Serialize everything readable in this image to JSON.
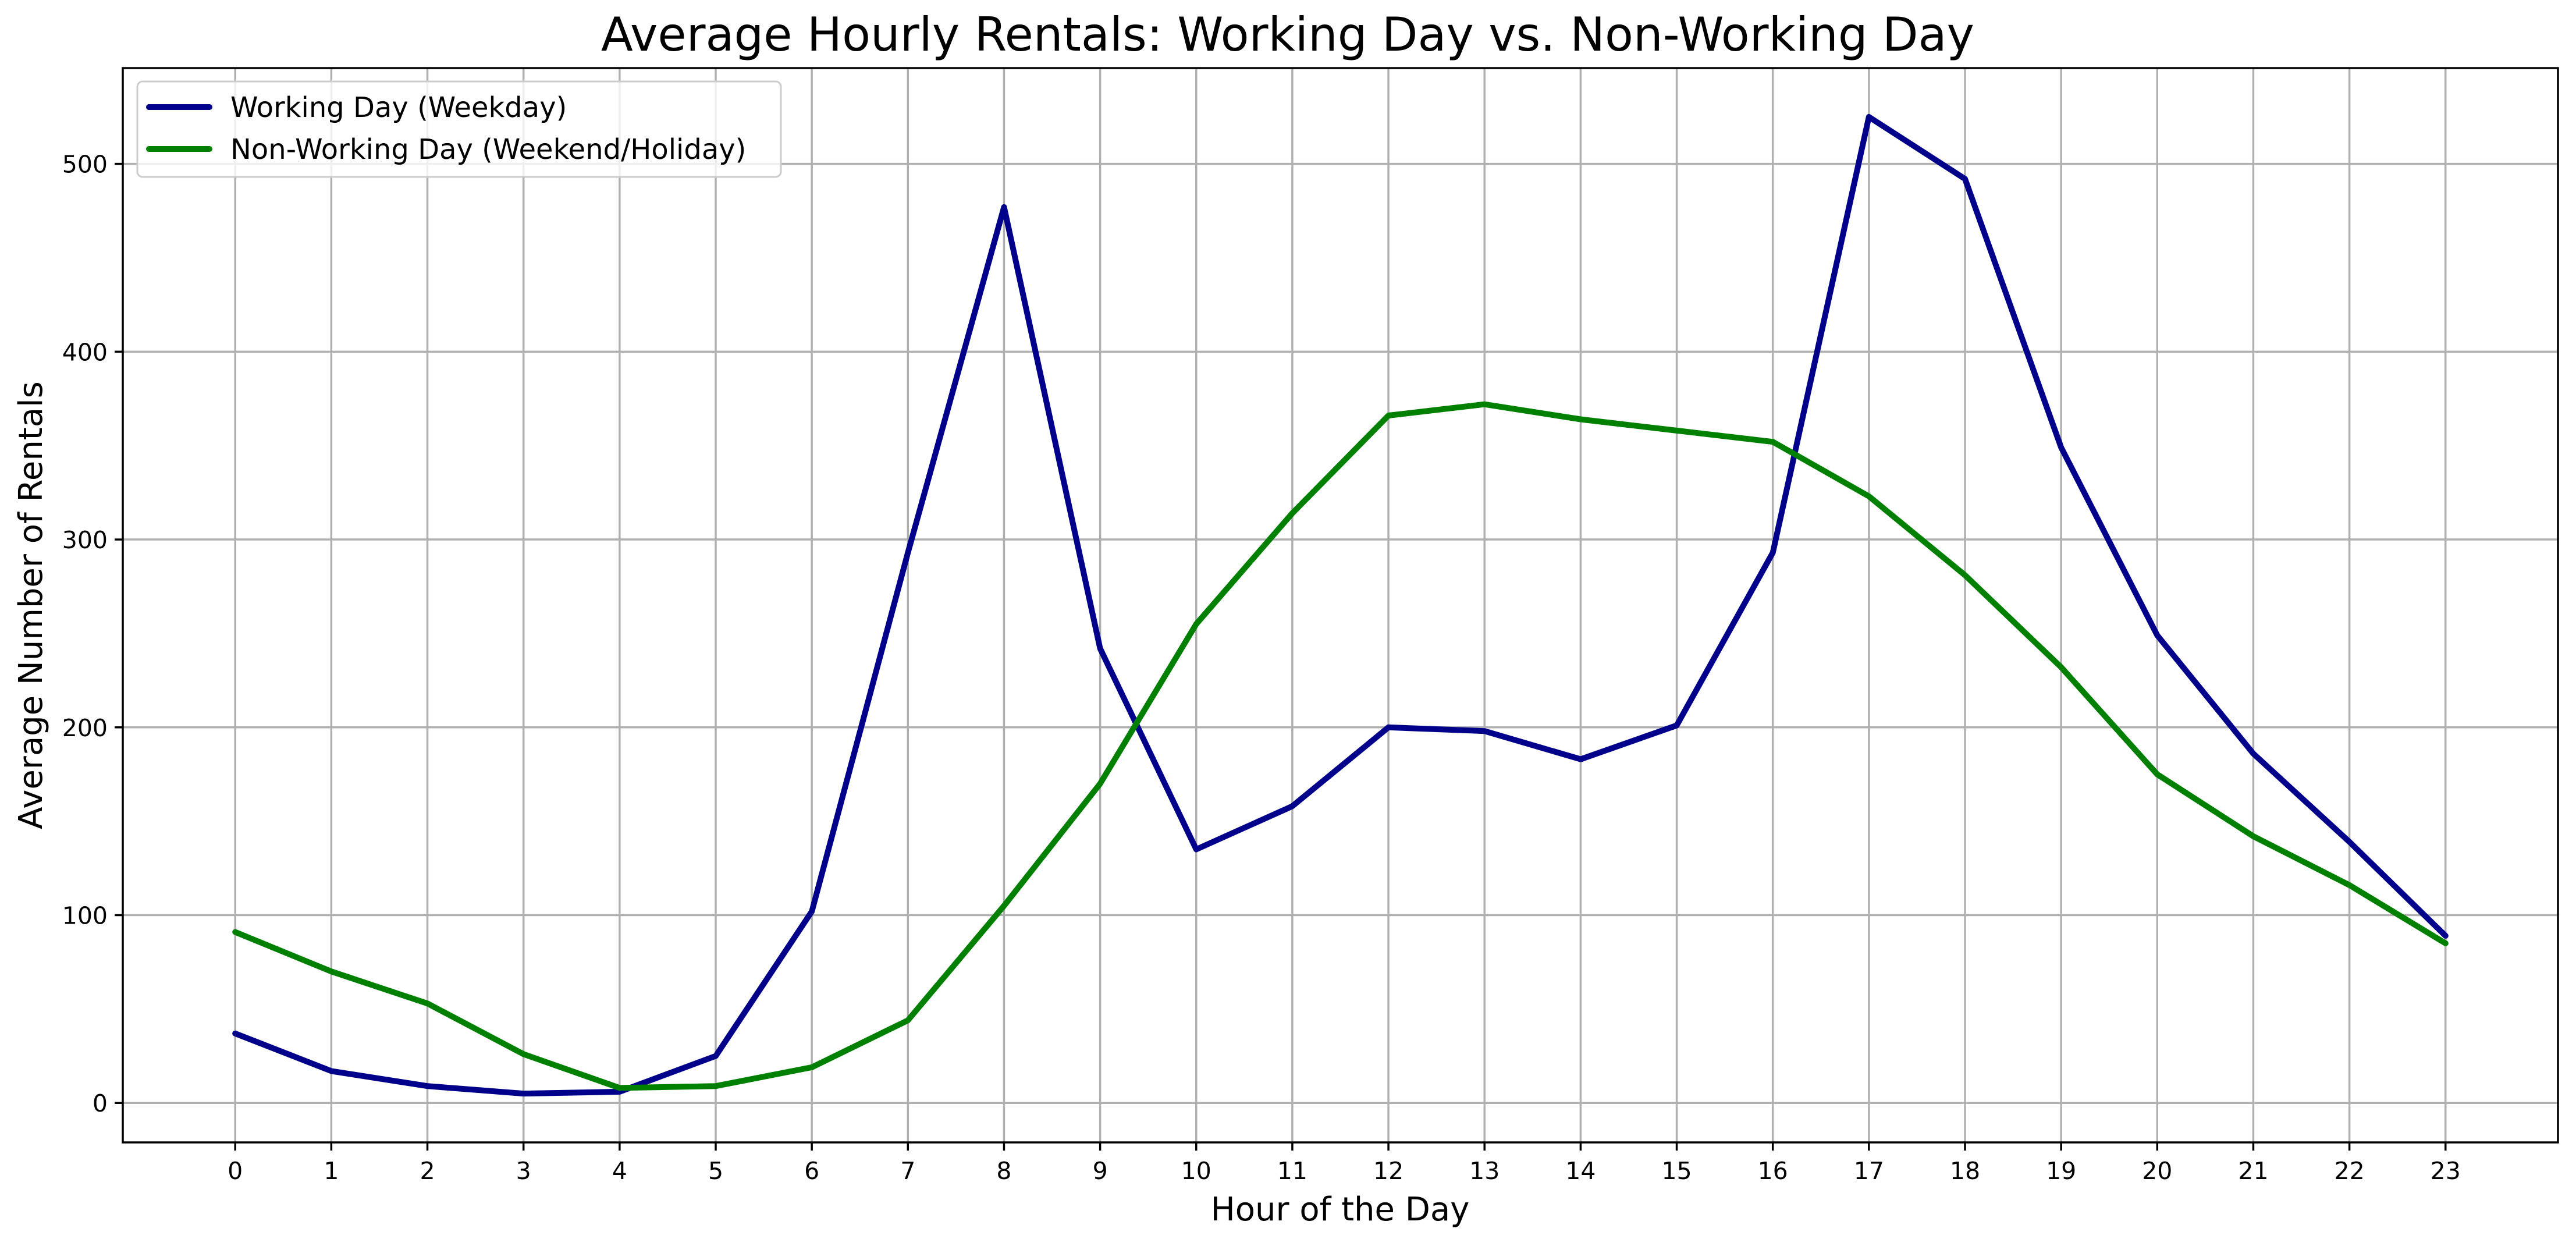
{
  "chart_data": {
    "type": "line",
    "title": "Average Hourly Rentals: Working Day vs. Non-Working Day",
    "xlabel": "Hour of the Day",
    "ylabel": "Average Number of Rentals",
    "x": [
      0,
      1,
      2,
      3,
      4,
      5,
      6,
      7,
      8,
      9,
      10,
      11,
      12,
      13,
      14,
      15,
      16,
      17,
      18,
      19,
      20,
      21,
      22,
      23
    ],
    "x_tick_labels": [
      "0",
      "1",
      "2",
      "3",
      "4",
      "5",
      "6",
      "7",
      "8",
      "9",
      "10",
      "11",
      "12",
      "13",
      "14",
      "15",
      "16",
      "17",
      "18",
      "19",
      "20",
      "21",
      "22",
      "23"
    ],
    "xlim": [
      -1.17,
      24.17
    ],
    "ylim": [
      -21,
      551
    ],
    "y_ticks": [
      0,
      100,
      200,
      300,
      400,
      500
    ],
    "y_tick_labels": [
      "0",
      "100",
      "200",
      "300",
      "400",
      "500"
    ],
    "grid": true,
    "legend_position": "top-left",
    "series": [
      {
        "name": "Working Day (Weekday)",
        "color": "#00008b",
        "values": [
          37,
          17,
          9,
          5,
          6,
          25,
          102,
          293,
          477,
          242,
          135,
          158,
          200,
          198,
          183,
          201,
          293,
          525,
          492,
          349,
          249,
          186,
          139,
          89
        ]
      },
      {
        "name": "Non-Working Day (Weekend/Holiday)",
        "color": "#008000",
        "values": [
          91,
          70,
          53,
          26,
          8,
          9,
          19,
          44,
          105,
          170,
          255,
          314,
          366,
          372,
          364,
          358,
          352,
          323,
          281,
          232,
          175,
          142,
          116,
          85
        ]
      }
    ]
  }
}
